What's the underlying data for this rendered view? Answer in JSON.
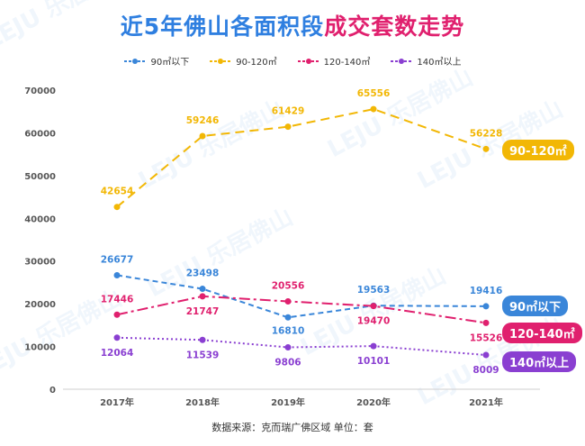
{
  "title": {
    "part1": "近5年佛山各面积段",
    "part2": "成交套数走势"
  },
  "watermark": "LEJU 乐居佛山",
  "footer": "数据来源：克而瑞广佛区域   单位：套",
  "colors": {
    "title_blue": "#2f7fe0",
    "title_pink": "#e0206e"
  },
  "chart_data": {
    "type": "line",
    "title": "近5年佛山各面积段成交套数走势",
    "categories": [
      "2017年",
      "2018年",
      "2019年",
      "2020年",
      "2021年"
    ],
    "ylim": [
      0,
      70000
    ],
    "yticks": [
      "0",
      "10000",
      "20000",
      "30000",
      "40000",
      "50000",
      "60000",
      "70000"
    ],
    "legend_position": "top",
    "series": [
      {
        "name": "90㎡以下",
        "values": [
          26677,
          23498,
          16810,
          19563,
          19416
        ],
        "color": "#3a86d9",
        "dash": "6,4",
        "tag": "90㎡以下",
        "tag_color": "#3a86d9"
      },
      {
        "name": "90-120㎡",
        "values": [
          42654,
          59246,
          61429,
          65556,
          56228
        ],
        "color": "#f2b705",
        "dash": "10,6",
        "tag": "90-120㎡",
        "tag_color": "#f2b705"
      },
      {
        "name": "120-140㎡",
        "values": [
          17446,
          21747,
          20556,
          19470,
          15526
        ],
        "color": "#e0206e",
        "dash": "12,4,3,4",
        "tag": "120-140㎡",
        "tag_color": "#e0206e"
      },
      {
        "name": "140㎡以上",
        "values": [
          12064,
          11539,
          9806,
          10101,
          8009
        ],
        "color": "#8a3fd1",
        "dash": "2,3",
        "tag": "140㎡以上",
        "tag_color": "#8a3fd1"
      }
    ]
  }
}
